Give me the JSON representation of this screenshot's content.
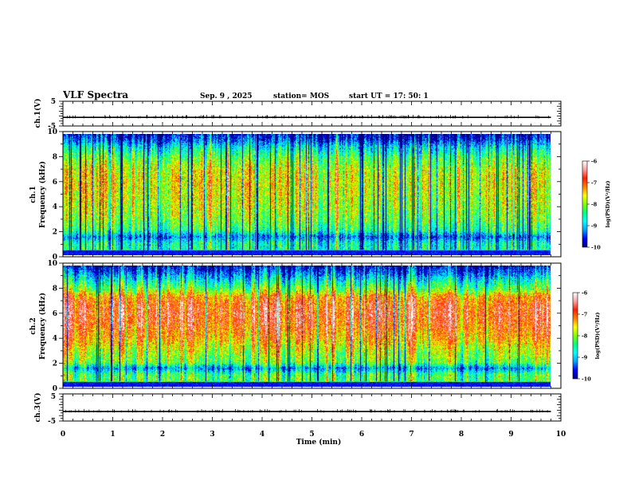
{
  "header": {
    "title": "VLF Spectra",
    "date": "Sep. 9 , 2025",
    "station": "station= MOS",
    "start_ut": "start UT = 17: 50: 1"
  },
  "colors": {
    "colormap": [
      "#000080",
      "#0000ff",
      "#00a0ff",
      "#00ffff",
      "#00ff80",
      "#80ff00",
      "#ffff00",
      "#ff8000",
      "#ff2000",
      "#ffa0a0",
      "#ffffff"
    ]
  },
  "chart_data": [
    {
      "type": "line",
      "ylabel": "ch.1(V)",
      "yticks": [
        "5",
        "-5"
      ],
      "ylim": [
        -5,
        5
      ],
      "xlim": [
        0,
        10
      ],
      "trace_x_end": 9.8,
      "trace_level": -1.5
    },
    {
      "type": "heatmap",
      "ylabel_line1": "ch.1",
      "ylabel_line2": "Frequency (kHz)",
      "ylim": [
        0,
        10
      ],
      "yticks": [
        "0",
        "2",
        "4",
        "6",
        "8",
        "10"
      ],
      "xlim": [
        0,
        10
      ],
      "data_x_end": 9.8,
      "colorbar": {
        "range": [
          -10,
          -6
        ],
        "ticks": [
          "-6",
          "-7",
          "-8",
          "-9",
          "-10"
        ],
        "label": "log(PSD)(V²/Hz)"
      },
      "level_profile_freq_khz": [
        0,
        0.3,
        1,
        1.5,
        2,
        3,
        4,
        5,
        6,
        7,
        8,
        9,
        9.5,
        10
      ],
      "level_profile": [
        -10,
        -8.5,
        -8.6,
        -9.3,
        -8.4,
        -8.0,
        -7.8,
        -7.7,
        -7.6,
        -7.7,
        -8.1,
        -8.8,
        -9.4,
        -9.7
      ]
    },
    {
      "type": "heatmap",
      "ylabel_line1": "ch.2",
      "ylabel_line2": "Frequency (kHz)",
      "ylim": [
        0,
        10
      ],
      "yticks": [
        "0",
        "2",
        "4",
        "6",
        "8",
        "10"
      ],
      "xlim": [
        0,
        10
      ],
      "data_x_end": 9.8,
      "colorbar": {
        "range": [
          -10,
          -6
        ],
        "ticks": [
          "-6",
          "-7",
          "-8",
          "-9",
          "-10"
        ],
        "label": "log(PSD)(V²/Hz)"
      },
      "level_profile_freq_khz": [
        0,
        0.3,
        1,
        1.5,
        2,
        3,
        4,
        5,
        6,
        7,
        7.5,
        8,
        9,
        9.5,
        10
      ],
      "level_profile": [
        -10,
        -8.2,
        -8.3,
        -9.2,
        -8.1,
        -7.8,
        -7.3,
        -7.0,
        -6.8,
        -7.0,
        -7.3,
        -8.0,
        -8.9,
        -9.4,
        -9.8
      ]
    },
    {
      "type": "line",
      "ylabel": "ch.3(V)",
      "yticks": [
        "5",
        "-5"
      ],
      "ylim": [
        -5,
        5
      ],
      "xlim": [
        0,
        10
      ],
      "trace_x_end": 9.8,
      "trace_level": -1.5
    }
  ],
  "xaxis": {
    "label": "Time (min)",
    "ticks": [
      "0",
      "1",
      "2",
      "3",
      "4",
      "5",
      "6",
      "7",
      "8",
      "9",
      "10"
    ]
  }
}
